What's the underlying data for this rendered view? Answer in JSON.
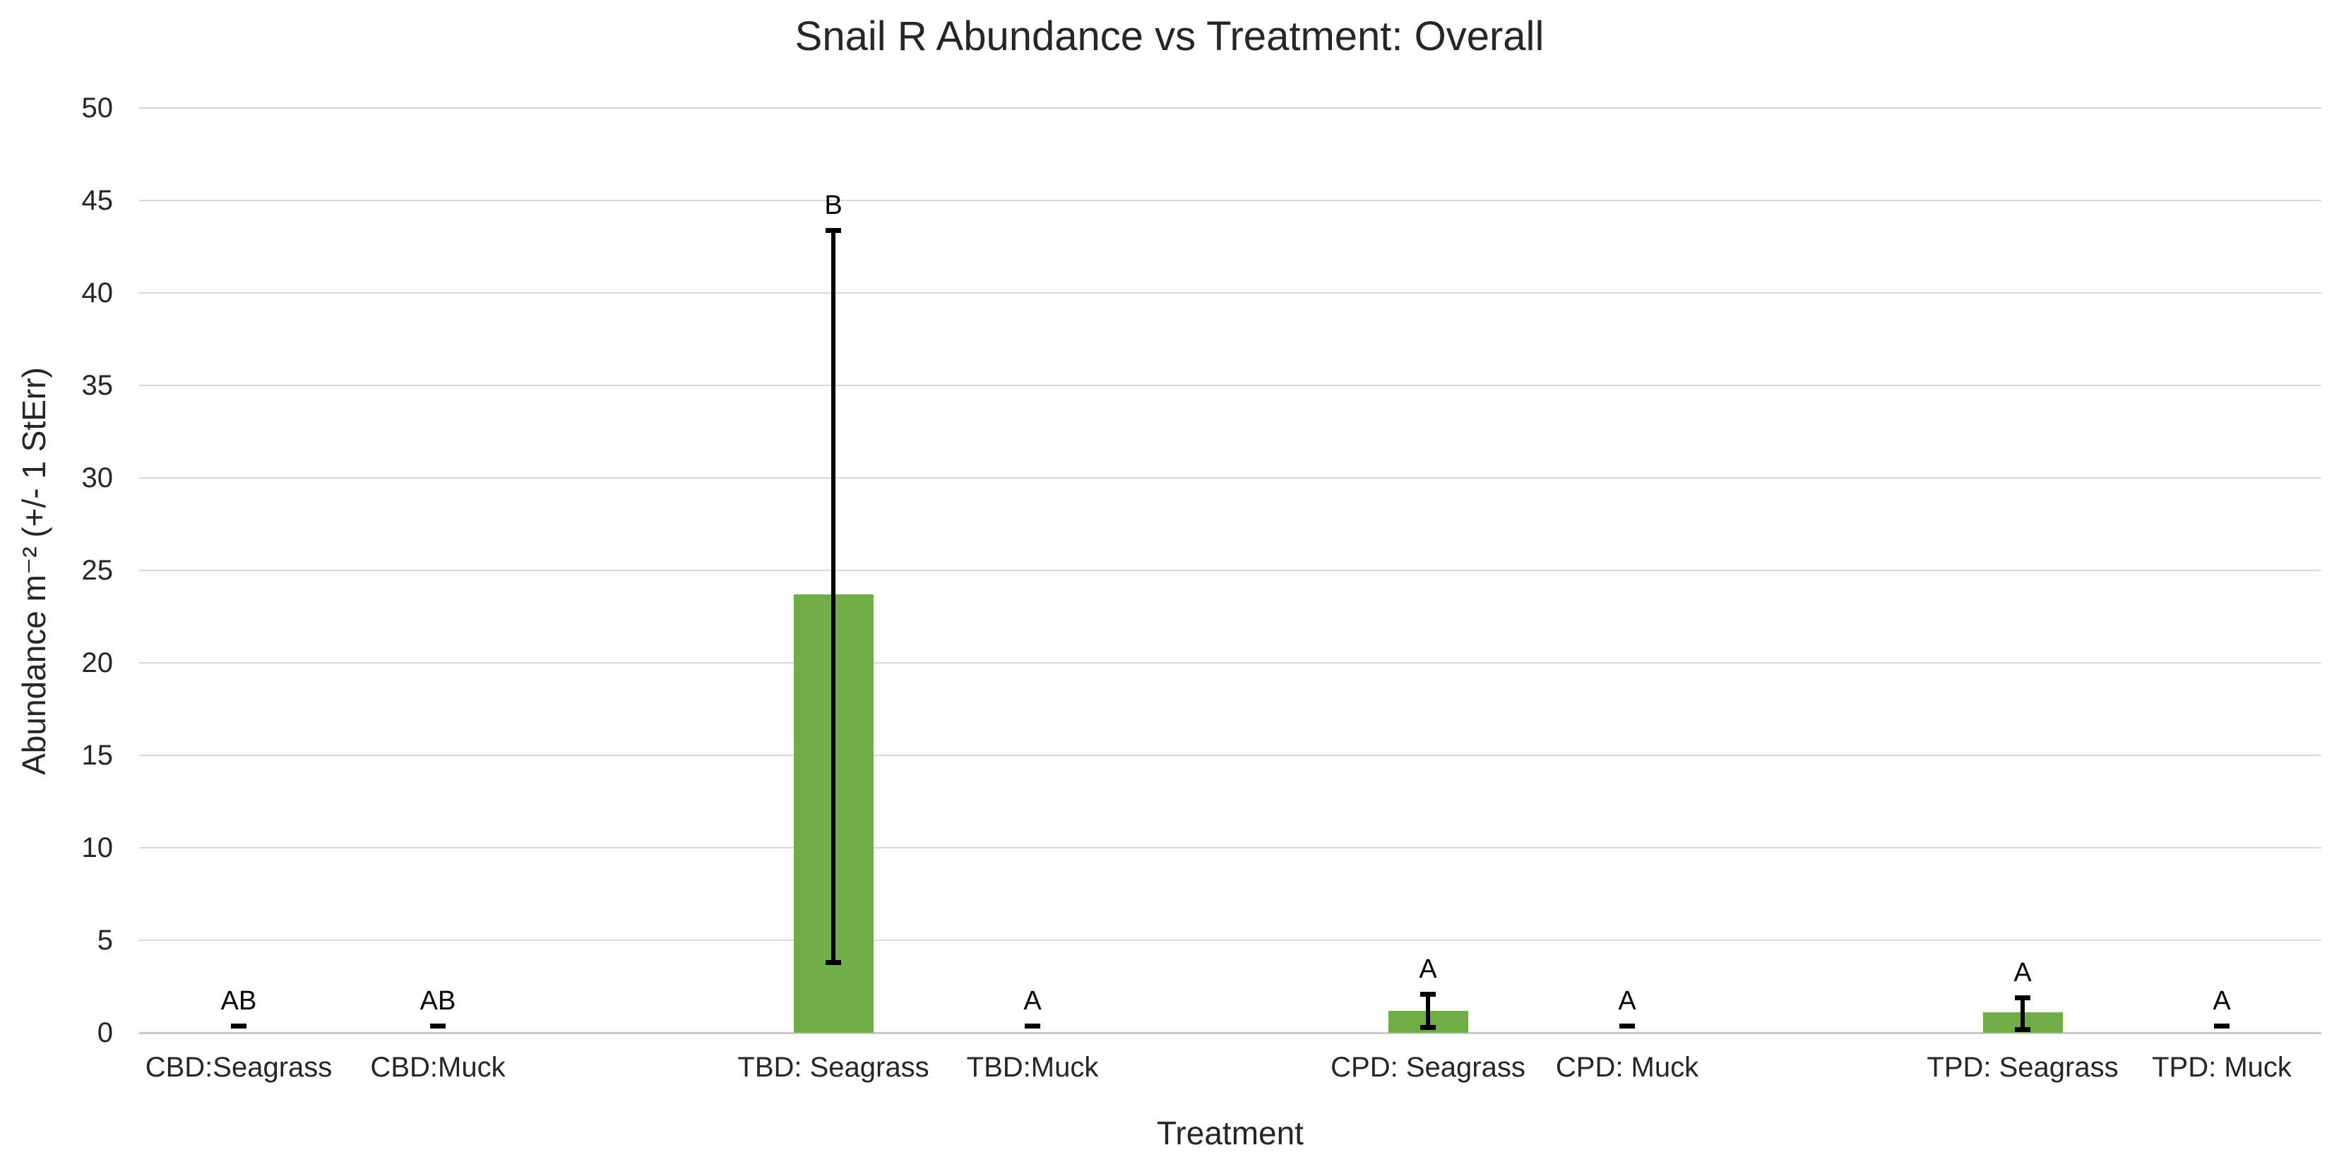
{
  "chart_data": {
    "type": "bar",
    "title": "Snail R Abundance vs Treatment: Overall",
    "xlabel": "Treatment",
    "ylabel": "Abundance m⁻² (+/- 1 StErr)",
    "ylim": [
      0,
      50
    ],
    "yticks": [
      0,
      5,
      10,
      15,
      20,
      25,
      30,
      35,
      40,
      45,
      50
    ],
    "grid": "horizontal",
    "legend": "none",
    "bar_color": "#70AD47",
    "error_color": "#000000",
    "gridline_color": "#d9d9d9",
    "groups": [
      "CBD",
      "TBD",
      "CPD",
      "TPD"
    ],
    "bars": [
      {
        "label": "CBD:Seagrass",
        "group": 0,
        "slot": 0,
        "value": 0,
        "err_low": 0,
        "err_high": 0,
        "letter": "AB"
      },
      {
        "label": "CBD:Muck",
        "group": 0,
        "slot": 1,
        "value": 0,
        "err_low": 0,
        "err_high": 0,
        "letter": "AB"
      },
      {
        "label": "TBD: Seagrass",
        "group": 1,
        "slot": 0,
        "value": 23.7,
        "err_low": 3.8,
        "err_high": 43.4,
        "letter": "B"
      },
      {
        "label": "TBD:Muck",
        "group": 1,
        "slot": 1,
        "value": 0,
        "err_low": 0,
        "err_high": 0,
        "letter": "A"
      },
      {
        "label": "CPD: Seagrass",
        "group": 2,
        "slot": 0,
        "value": 1.2,
        "err_low": 0.3,
        "err_high": 2.1,
        "letter": "A"
      },
      {
        "label": "CPD: Muck",
        "group": 2,
        "slot": 1,
        "value": 0,
        "err_low": 0,
        "err_high": 0,
        "letter": "A"
      },
      {
        "label": "TPD: Seagrass",
        "group": 3,
        "slot": 0,
        "value": 1.1,
        "err_low": 0.2,
        "err_high": 1.9,
        "letter": "A"
      },
      {
        "label": "TPD: Muck",
        "group": 3,
        "slot": 1,
        "value": 0,
        "err_low": 0,
        "err_high": 0,
        "letter": "A"
      }
    ]
  }
}
